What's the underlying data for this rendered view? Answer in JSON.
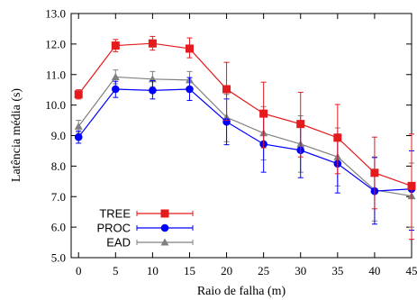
{
  "chart_data": {
    "type": "line",
    "xlabel": "Raio de falha (m)",
    "ylabel": "Latência média (s)",
    "x": [
      0,
      5,
      10,
      15,
      20,
      25,
      30,
      35,
      40,
      45
    ],
    "xlim": [
      -1,
      45
    ],
    "ylim": [
      5.0,
      13.0
    ],
    "x_ticks": [
      "0",
      "5",
      "10",
      "15",
      "20",
      "25",
      "30",
      "35",
      "40",
      "45"
    ],
    "y_ticks": [
      "5.0",
      "6.0",
      "7.0",
      "8.0",
      "9.0",
      "10.0",
      "11.0",
      "12.0",
      "13.0"
    ],
    "legend_position": "bottom-left",
    "grid": false,
    "series": [
      {
        "name": "TREE",
        "color": "#e41a1c",
        "marker": "square",
        "values": [
          10.35,
          11.95,
          12.02,
          11.85,
          10.52,
          9.72,
          9.38,
          8.93,
          7.78,
          7.35
        ],
        "err_low": [
          10.2,
          11.75,
          11.8,
          11.55,
          9.5,
          8.6,
          8.3,
          7.75,
          6.6,
          5.6
        ],
        "err_high": [
          10.5,
          12.15,
          12.25,
          12.2,
          11.4,
          10.75,
          10.42,
          10.02,
          8.95,
          9.05
        ]
      },
      {
        "name": "PROC",
        "color": "#0000ff",
        "marker": "circle",
        "values": [
          8.95,
          10.52,
          10.48,
          10.52,
          9.45,
          8.72,
          8.52,
          8.08,
          7.18,
          7.25
        ],
        "err_low": [
          8.75,
          10.25,
          10.2,
          10.15,
          8.7,
          7.8,
          7.62,
          7.12,
          6.1,
          5.9
        ],
        "err_high": [
          9.15,
          10.78,
          10.8,
          10.9,
          10.2,
          9.65,
          9.4,
          9.05,
          8.28,
          8.5
        ]
      },
      {
        "name": "EAD",
        "color": "#808080",
        "marker": "triangle",
        "values": [
          9.3,
          10.92,
          10.85,
          10.82,
          9.6,
          9.08,
          8.72,
          8.3,
          7.22,
          7.02
        ],
        "err_low": [
          9.1,
          10.7,
          10.6,
          10.55,
          8.8,
          8.2,
          7.8,
          7.35,
          6.2,
          6.0
        ],
        "err_high": [
          9.5,
          11.15,
          11.1,
          11.1,
          10.35,
          9.95,
          9.65,
          9.25,
          8.3,
          8.1
        ]
      }
    ]
  }
}
